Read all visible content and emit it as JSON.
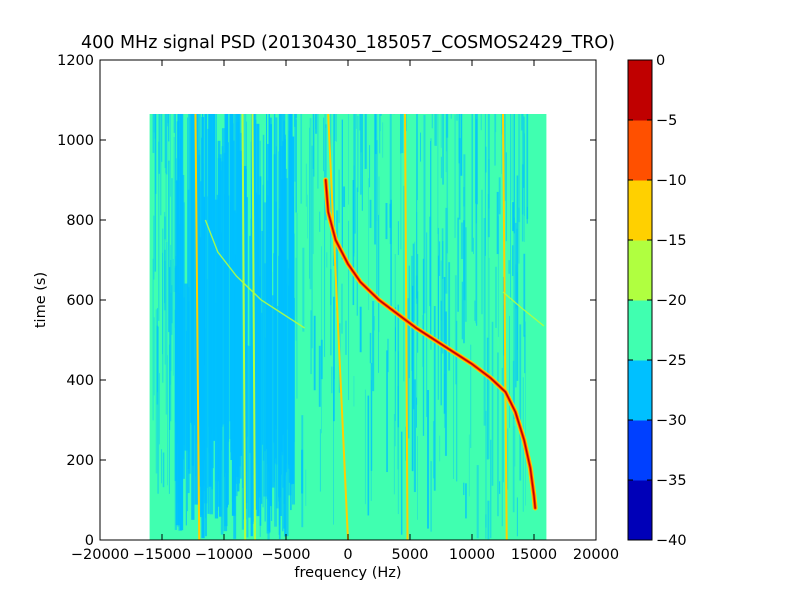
{
  "chart_data": {
    "type": "heatmap",
    "title": "400 MHz signal PSD (20130430_185057_COSMOS2429_TRO)",
    "xlabel": "frequency (Hz)",
    "ylabel": "time (s)",
    "xlim": [
      -20000,
      20000
    ],
    "ylim": [
      0,
      1200
    ],
    "x_ticks": [
      -20000,
      -15000,
      -10000,
      -5000,
      0,
      5000,
      10000,
      15000,
      20000
    ],
    "x_tick_labels": [
      "−20000",
      "−15000",
      "−10000",
      "−5000",
      "0",
      "5000",
      "10000",
      "15000",
      "20000"
    ],
    "y_ticks": [
      0,
      200,
      400,
      600,
      800,
      1000,
      1200
    ],
    "y_tick_labels": [
      "0",
      "200",
      "400",
      "600",
      "800",
      "1000",
      "1200"
    ],
    "data_extent": {
      "x": [
        -16000,
        16000
      ],
      "y": [
        0,
        1065
      ]
    },
    "background_level_band": [
      -25,
      -20
    ],
    "noisy_region_x": [
      -14000,
      -4500
    ],
    "colorbar": {
      "levels": [
        -40,
        -35,
        -30,
        -25,
        -20,
        -15,
        -10,
        -5,
        0
      ],
      "tick_labels": [
        "−40",
        "−35",
        "−30",
        "−25",
        "−20",
        "−15",
        "−10",
        "−5",
        "0"
      ],
      "colors": [
        "#0000b8",
        "#0040ff",
        "#00c0ff",
        "#40ffb0",
        "#b0ff40",
        "#ffd000",
        "#ff5000",
        "#c00000"
      ]
    },
    "doppler_curve": {
      "level": -2,
      "points": [
        [
          -1800,
          900
        ],
        [
          -1600,
          820
        ],
        [
          -1000,
          750
        ],
        [
          0,
          690
        ],
        [
          1000,
          645
        ],
        [
          2500,
          600
        ],
        [
          4000,
          565
        ],
        [
          5500,
          530
        ],
        [
          7000,
          500
        ],
        [
          8500,
          470
        ],
        [
          10000,
          440
        ],
        [
          11500,
          405
        ],
        [
          12700,
          370
        ],
        [
          13500,
          320
        ],
        [
          14200,
          250
        ],
        [
          14700,
          180
        ],
        [
          15000,
          110
        ],
        [
          15100,
          80
        ]
      ]
    },
    "faint_curve": {
      "level": -17,
      "points": [
        [
          -11500,
          800
        ],
        [
          -10500,
          720
        ],
        [
          -9000,
          660
        ],
        [
          -7000,
          600
        ],
        [
          -5000,
          560
        ],
        [
          -3500,
          530
        ]
      ]
    },
    "faint_curve_2": {
      "level": -17,
      "points": [
        [
          12500,
          620
        ],
        [
          14000,
          580
        ],
        [
          15800,
          535
        ]
      ]
    },
    "vertical_lines": [
      {
        "x": -12000,
        "x_top": -12300,
        "level": -15
      },
      {
        "x": -8300,
        "x_top": -8500,
        "level": -17
      },
      {
        "x": -7500,
        "x_top": -7700,
        "level": -20
      },
      {
        "x": 0,
        "x_top": -1600,
        "level": -15
      },
      {
        "x": 4800,
        "x_top": 4600,
        "level": -15
      },
      {
        "x": 12800,
        "x_top": 12500,
        "level": -15
      }
    ]
  }
}
